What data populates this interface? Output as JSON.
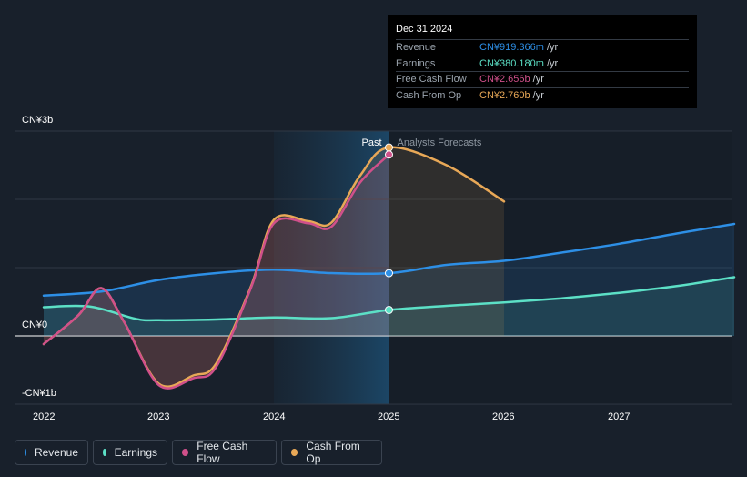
{
  "chart_data": {
    "type": "line",
    "x_ticks": [
      "2022",
      "2023",
      "2024",
      "2025",
      "2026",
      "2027"
    ],
    "y_ticks": [
      "CN¥3b",
      "CN¥0",
      "-CN¥1b"
    ],
    "ylim": [
      -1,
      3
    ],
    "divider_labels": {
      "past": "Past",
      "forecast": "Analysts Forecasts"
    },
    "series": [
      {
        "name": "Revenue",
        "color": "#2d8fe6",
        "points": [
          [
            2022.0,
            0.59
          ],
          [
            2022.5,
            0.65
          ],
          [
            2023.0,
            0.82
          ],
          [
            2023.5,
            0.92
          ],
          [
            2024.0,
            0.97
          ],
          [
            2024.5,
            0.92
          ],
          [
            2025.0,
            0.919
          ],
          [
            2025.5,
            1.04
          ],
          [
            2026.0,
            1.1
          ],
          [
            2026.5,
            1.22
          ],
          [
            2027.0,
            1.35
          ],
          [
            2027.5,
            1.5
          ],
          [
            2028.0,
            1.64
          ]
        ]
      },
      {
        "name": "Earnings",
        "color": "#5ce0c6",
        "points": [
          [
            2022.0,
            0.42
          ],
          [
            2022.4,
            0.43
          ],
          [
            2022.8,
            0.25
          ],
          [
            2023.0,
            0.23
          ],
          [
            2023.5,
            0.24
          ],
          [
            2024.0,
            0.27
          ],
          [
            2024.5,
            0.26
          ],
          [
            2025.0,
            0.38
          ],
          [
            2025.5,
            0.44
          ],
          [
            2026.0,
            0.49
          ],
          [
            2026.5,
            0.55
          ],
          [
            2027.0,
            0.63
          ],
          [
            2027.5,
            0.73
          ],
          [
            2028.0,
            0.86
          ]
        ]
      },
      {
        "name": "Free Cash Flow",
        "color": "#d0508a",
        "points": [
          [
            2022.0,
            -0.12
          ],
          [
            2022.3,
            0.3
          ],
          [
            2022.5,
            0.7
          ],
          [
            2022.7,
            0.2
          ],
          [
            2023.0,
            -0.72
          ],
          [
            2023.3,
            -0.62
          ],
          [
            2023.5,
            -0.45
          ],
          [
            2023.8,
            0.7
          ],
          [
            2024.0,
            1.65
          ],
          [
            2024.3,
            1.65
          ],
          [
            2024.5,
            1.6
          ],
          [
            2024.75,
            2.25
          ],
          [
            2025.0,
            2.656
          ]
        ]
      },
      {
        "name": "Cash From Op",
        "color": "#e8a857",
        "points": [
          [
            2022.0,
            -0.12
          ],
          [
            2022.3,
            0.3
          ],
          [
            2022.5,
            0.7
          ],
          [
            2022.7,
            0.2
          ],
          [
            2023.0,
            -0.7
          ],
          [
            2023.3,
            -0.58
          ],
          [
            2023.5,
            -0.4
          ],
          [
            2023.8,
            0.72
          ],
          [
            2024.0,
            1.7
          ],
          [
            2024.3,
            1.68
          ],
          [
            2024.5,
            1.66
          ],
          [
            2024.75,
            2.35
          ],
          [
            2025.0,
            2.76
          ],
          [
            2025.5,
            2.5
          ],
          [
            2026.0,
            1.97
          ]
        ]
      }
    ]
  },
  "tooltip": {
    "date": "Dec 31 2024",
    "rows": [
      {
        "label": "Revenue",
        "value": "CN¥919.366m",
        "unit": "/yr",
        "color": "#2d8fe6"
      },
      {
        "label": "Earnings",
        "value": "CN¥380.180m",
        "unit": "/yr",
        "color": "#5ce0c6"
      },
      {
        "label": "Free Cash Flow",
        "value": "CN¥2.656b",
        "unit": "/yr",
        "color": "#d0508a"
      },
      {
        "label": "Cash From Op",
        "value": "CN¥2.760b",
        "unit": "/yr",
        "color": "#e8a857"
      }
    ]
  },
  "legend": [
    {
      "label": "Revenue",
      "color": "#2d8fe6"
    },
    {
      "label": "Earnings",
      "color": "#5ce0c6"
    },
    {
      "label": "Free Cash Flow",
      "color": "#d0508a"
    },
    {
      "label": "Cash From Op",
      "color": "#e8a857"
    }
  ]
}
